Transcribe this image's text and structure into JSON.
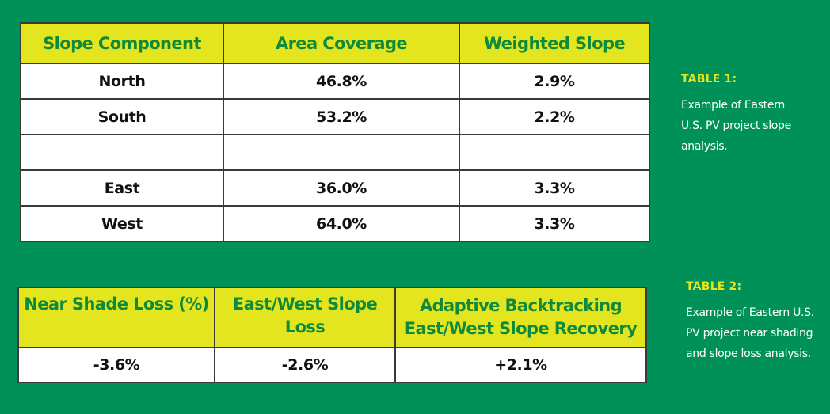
{
  "colors": {
    "background": "#009158",
    "header_fill": "#e3e51e",
    "header_text": "#0f8a3c",
    "caption_title": "#e3e51e"
  },
  "table1": {
    "headers": [
      "Slope Component",
      "Area Coverage",
      "Weighted Slope"
    ],
    "rows": [
      [
        "North",
        "46.8%",
        "2.9%"
      ],
      [
        "South",
        "53.2%",
        "2.2%"
      ],
      [
        "",
        "",
        ""
      ],
      [
        "East",
        "36.0%",
        "3.3%"
      ],
      [
        "West",
        "64.0%",
        "3.3%"
      ]
    ]
  },
  "caption1": {
    "title": "TABLE 1:",
    "lines": [
      "Example of Eastern",
      "U.S. PV project slope",
      "analysis."
    ]
  },
  "table2": {
    "headers": [
      [
        "Near Shade Loss (%)"
      ],
      [
        "East/West Slope Loss"
      ],
      [
        "Adaptive Backtracking",
        "East/West Slope Recovery"
      ]
    ],
    "rows": [
      [
        "-3.6%",
        "-2.6%",
        "+2.1%"
      ]
    ]
  },
  "caption2": {
    "title": "TABLE 2:",
    "lines": [
      "Example of Eastern U.S.",
      "PV project near shading",
      "and slope loss analysis."
    ]
  }
}
